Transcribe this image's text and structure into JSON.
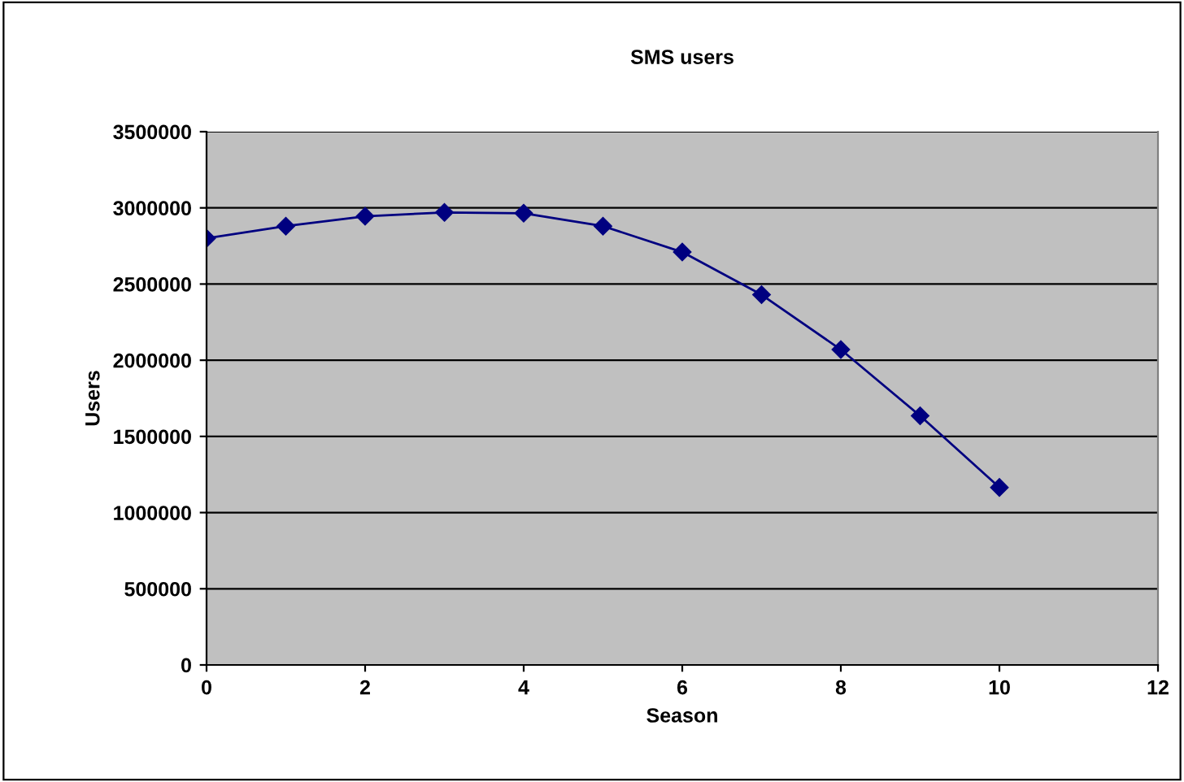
{
  "chart_data": {
    "type": "line",
    "title": "SMS users",
    "xlabel": "Season",
    "ylabel": "Users",
    "x": [
      0,
      1,
      2,
      3,
      4,
      5,
      6,
      7,
      8,
      9,
      10
    ],
    "series": [
      {
        "color": "#000080",
        "values": [
          2800000,
          2880000,
          2945000,
          2970000,
          2965000,
          2880000,
          2710000,
          2430000,
          2070000,
          1635000,
          1165000
        ]
      }
    ],
    "xlim": [
      0,
      12
    ],
    "xticks": [
      0,
      2,
      4,
      6,
      8,
      10,
      12
    ],
    "ylim": [
      0,
      3500000
    ],
    "yticks": [
      0,
      500000,
      1000000,
      1500000,
      2000000,
      2500000,
      3000000,
      3500000
    ],
    "grid": "y",
    "marker": "diamond",
    "line_style": "solid",
    "legend": false
  }
}
